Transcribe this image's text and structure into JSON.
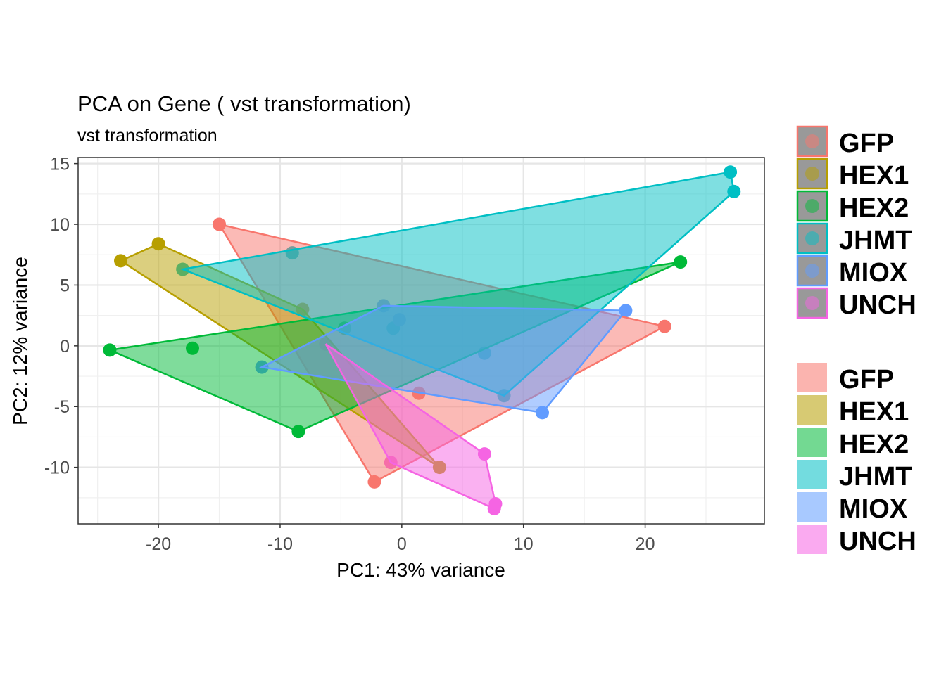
{
  "chart_data": {
    "type": "scatter",
    "title": "PCA on Gene ( vst transformation)",
    "subtitle": "vst transformation",
    "xlabel": "PC1: 43% variance",
    "ylabel": "PC2: 12% variance",
    "xlim": [
      -26.6,
      29.8
    ],
    "ylim": [
      -14.65,
      15.5
    ],
    "xticks": [
      -20,
      -10,
      0,
      10,
      20
    ],
    "yticks": [
      15,
      10,
      5,
      0,
      -5,
      -10
    ],
    "xtick_labels": [
      "-20",
      "-10",
      "0",
      "10",
      "20"
    ],
    "ytick_labels": [
      "15",
      "10",
      "5",
      "0",
      "-5",
      "-10"
    ],
    "grid": true,
    "legend_position": "right",
    "series": [
      {
        "name": "GFP",
        "color": "#F8766D",
        "points": [
          [
            -15.0,
            10.0
          ],
          [
            21.6,
            1.6
          ],
          [
            -2.25,
            -11.2
          ],
          [
            1.4,
            -3.9
          ]
        ]
      },
      {
        "name": "HEX1",
        "color": "#B79F00",
        "points": [
          [
            -23.1,
            7.0
          ],
          [
            -20.0,
            8.4
          ],
          [
            -8.15,
            3.0
          ],
          [
            3.1,
            -10.0
          ]
        ]
      },
      {
        "name": "HEX2",
        "color": "#00BA38",
        "points": [
          [
            -24.0,
            -0.35
          ],
          [
            -17.2,
            -0.2
          ],
          [
            -8.5,
            -7.05
          ],
          [
            22.9,
            6.9
          ],
          [
            -4.7,
            1.45
          ]
        ]
      },
      {
        "name": "JHMT",
        "color": "#00BFC4",
        "points": [
          [
            -18.0,
            6.3
          ],
          [
            -9.0,
            7.65
          ],
          [
            27.0,
            14.3
          ],
          [
            27.3,
            12.7
          ],
          [
            6.8,
            -0.6
          ],
          [
            8.4,
            -4.1
          ],
          [
            -0.7,
            1.45
          ]
        ]
      },
      {
        "name": "MIOX",
        "color": "#619CFF",
        "points": [
          [
            -11.5,
            -1.75
          ],
          [
            -1.5,
            3.3
          ],
          [
            18.4,
            2.9
          ],
          [
            11.55,
            -5.5
          ],
          [
            -0.2,
            2.15
          ]
        ]
      },
      {
        "name": "UNCH",
        "color": "#F564E3",
        "points": [
          [
            -6.25,
            0.15
          ],
          [
            -0.9,
            -9.6
          ],
          [
            6.8,
            -8.9
          ],
          [
            7.7,
            -13.0
          ],
          [
            7.6,
            -13.4
          ]
        ]
      }
    ]
  }
}
